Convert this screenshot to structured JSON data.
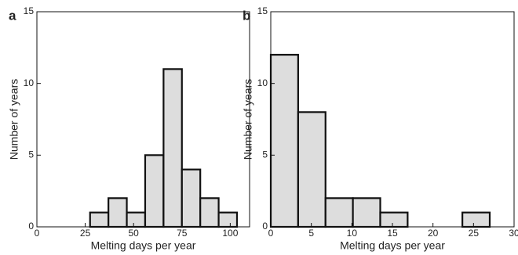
{
  "chart_data": [
    {
      "type": "histogram",
      "panel_label": "a",
      "xlabel": "Melting days per year",
      "ylabel": "Number of years",
      "bins": [
        27.5,
        37,
        46.5,
        56,
        65.5,
        75,
        84.5,
        94,
        103.5
      ],
      "values": [
        1,
        2,
        1,
        5,
        11,
        4,
        2,
        1
      ],
      "color": "#dddddd",
      "xlim": [
        0,
        110
      ],
      "xticks": [
        0,
        25,
        50,
        75,
        100
      ],
      "ylim": [
        0,
        15
      ],
      "yticks": [
        0,
        5,
        10,
        15
      ]
    },
    {
      "type": "histogram",
      "panel_label": "b",
      "xlabel": "Melting days per year",
      "ylabel": "Number of years",
      "bins": [
        0,
        3.375,
        6.75,
        10.125,
        13.5,
        16.875,
        20.25,
        23.625,
        27
      ],
      "values": [
        12,
        8,
        2,
        2,
        1,
        0,
        0,
        1
      ],
      "color": "#dddddd",
      "xlim": [
        0,
        30
      ],
      "xticks": [
        0,
        5,
        10,
        15,
        20,
        25,
        30
      ],
      "ylim": [
        0,
        15
      ],
      "yticks": [
        0,
        5,
        10,
        15
      ]
    }
  ]
}
